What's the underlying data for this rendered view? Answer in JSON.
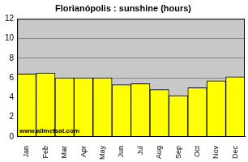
{
  "chart_data": {
    "type": "bar",
    "title": "Florianópolis : sunshine (hours)",
    "categories": [
      "Jan",
      "Feb",
      "Mar",
      "Apr",
      "May",
      "Jun",
      "Jul",
      "Aug",
      "Sep",
      "Oct",
      "Nov",
      "Dec"
    ],
    "values": [
      6.4,
      6.5,
      6.0,
      6.0,
      6.0,
      5.3,
      5.4,
      4.8,
      4.2,
      5.0,
      5.7,
      6.1
    ],
    "color": "#ffff00",
    "ylim": [
      0,
      12
    ],
    "yticks": [
      0,
      2,
      4,
      6,
      8,
      10,
      12
    ],
    "grid": true,
    "annotations": [
      "www.allmetsat.com"
    ]
  }
}
